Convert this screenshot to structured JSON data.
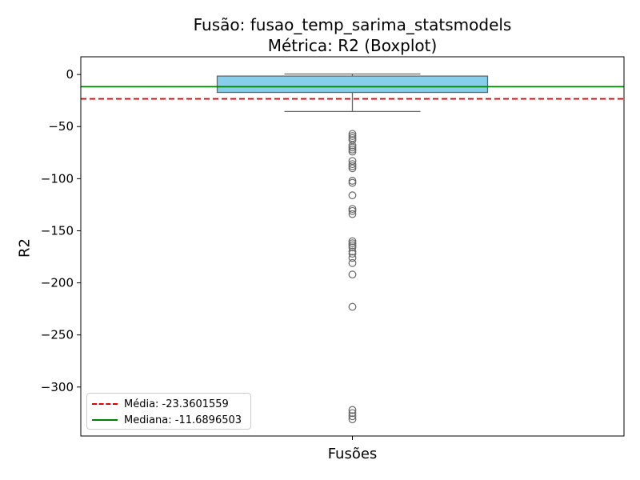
{
  "chart_data": {
    "type": "boxplot",
    "title": "Fusão: fusao_temp_sarima_statsmodels",
    "subtitle": "Métrica: R2 (Boxplot)",
    "xlabel": "Fusões",
    "ylabel": "R2",
    "ylim": [
      -347,
      17
    ],
    "yticks": [
      0,
      -50,
      -100,
      -150,
      -200,
      -250,
      -300
    ],
    "ytick_labels": [
      "0",
      "−50",
      "−100",
      "−150",
      "−200",
      "−250",
      "−300"
    ],
    "box": {
      "q1": -17.2,
      "median": -11.6896503,
      "q3": -1.5,
      "whisker_low": -35.5,
      "whisker_high": 0.5,
      "fill": "#87ceeb",
      "edge": "#666666"
    },
    "outliers": [
      -57,
      -59,
      -61,
      -63,
      -68,
      -70,
      -72,
      -74,
      -83,
      -86,
      -88,
      -90,
      -102,
      -104,
      -116,
      -129,
      -131,
      -134,
      -160,
      -162,
      -164,
      -166,
      -170,
      -172,
      -176,
      -181,
      -192,
      -223,
      -322,
      -325,
      -328,
      -331
    ],
    "reference_lines": [
      {
        "name": "Média",
        "value": -23.3601559,
        "label": "Média: -23.3601559",
        "color": "#e00000",
        "style": "dashed"
      },
      {
        "name": "Mediana",
        "value": -11.6896503,
        "label": "Mediana: -11.6896503",
        "color": "#008000",
        "style": "solid"
      }
    ],
    "legend_position": "lower-left"
  }
}
